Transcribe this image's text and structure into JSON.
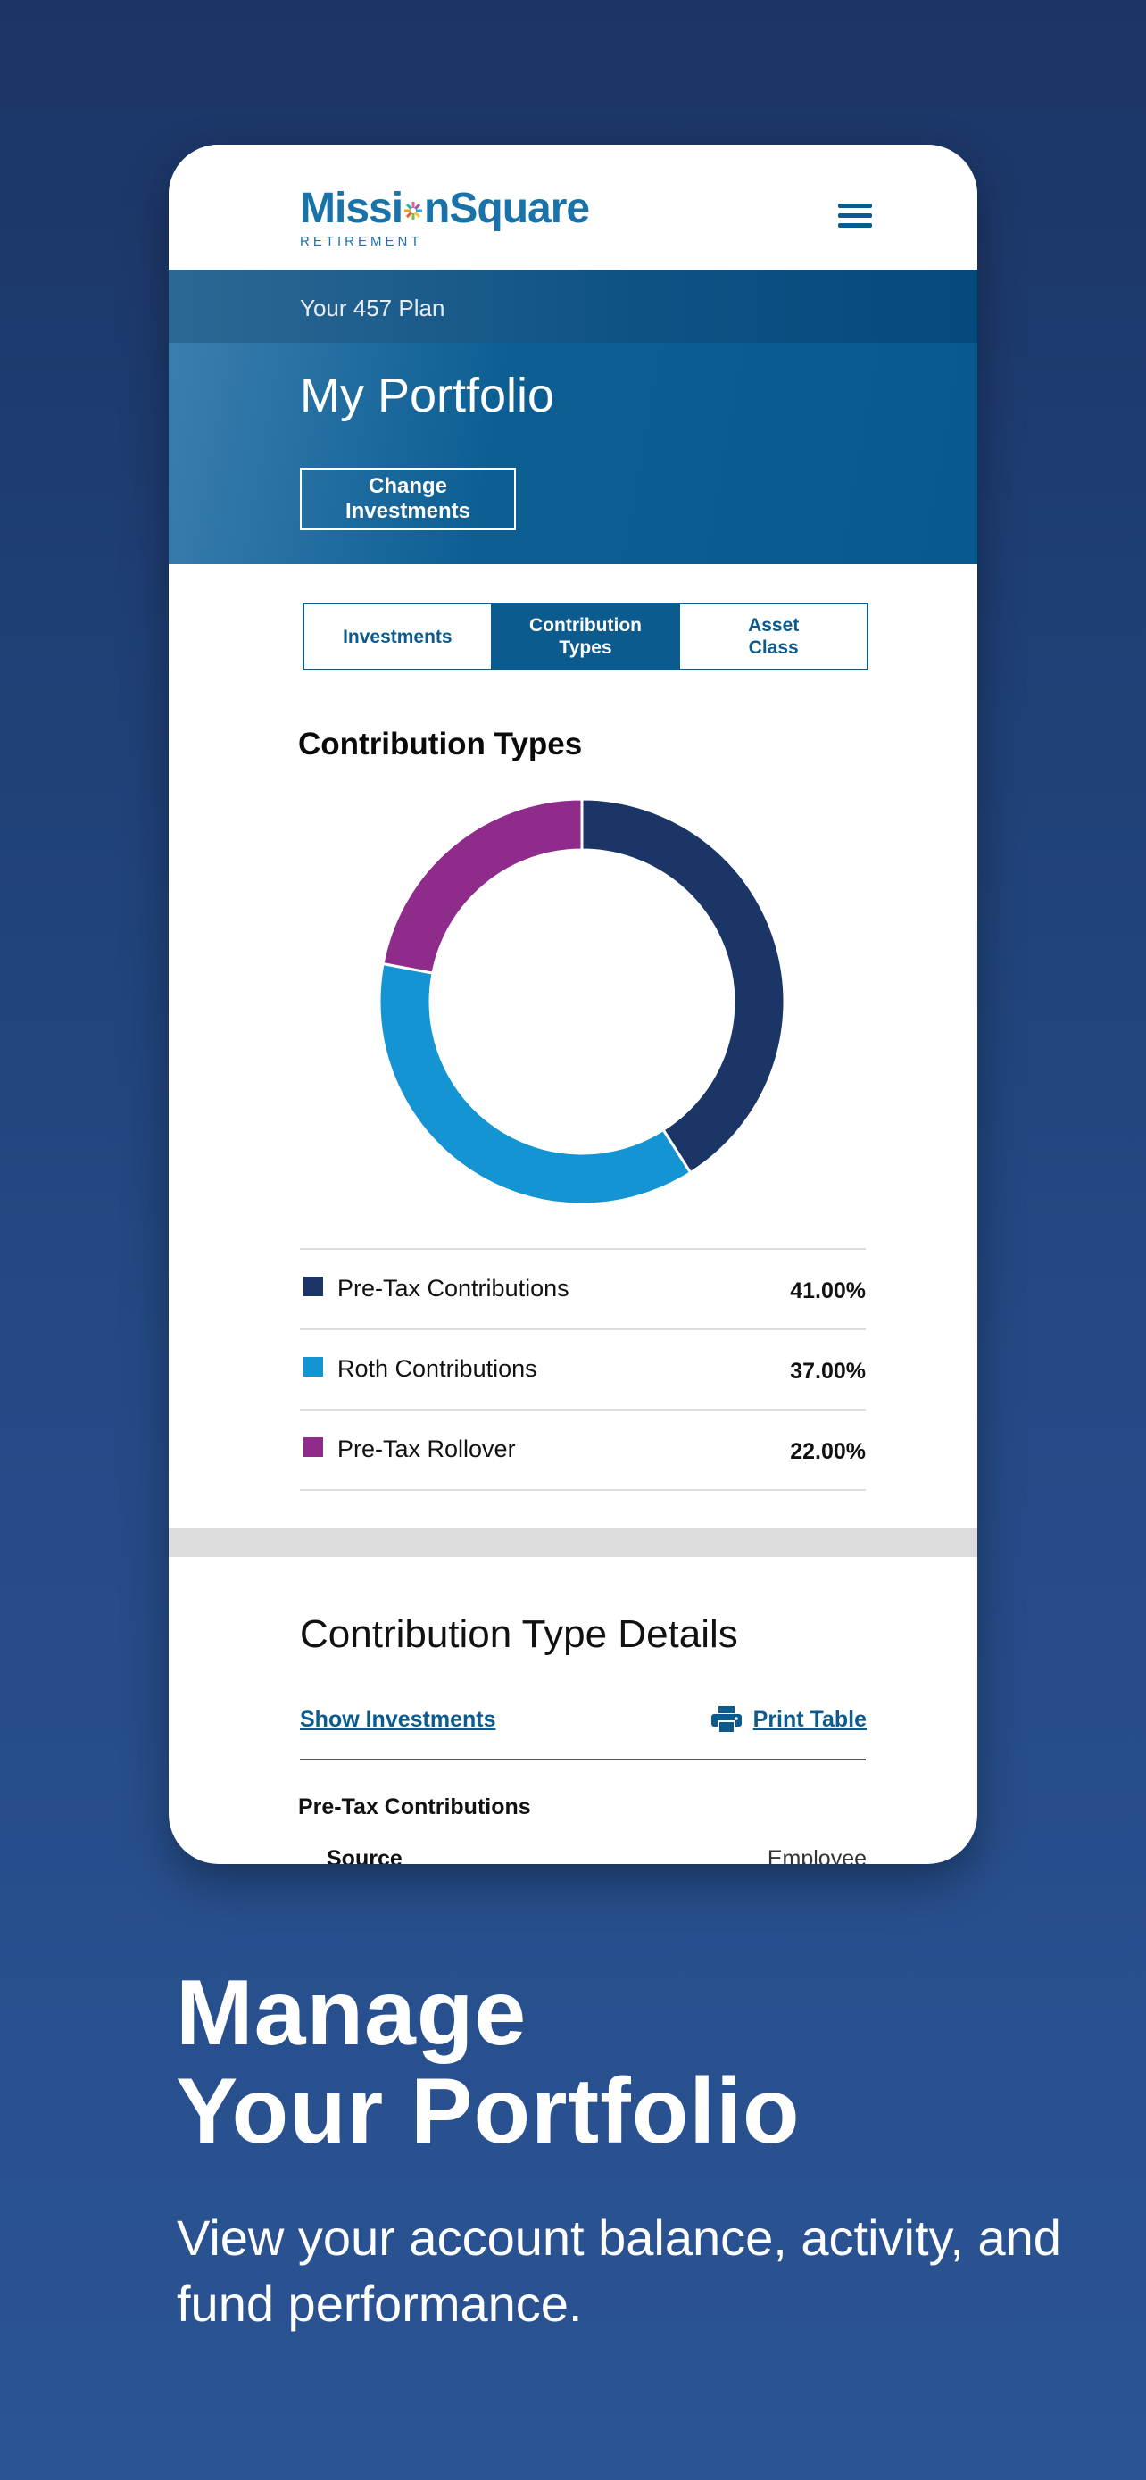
{
  "brand": {
    "name_part1": "Missi",
    "name_part2": "nSquare",
    "tagline": "RETIREMENT"
  },
  "plan_label": "Your 457 Plan",
  "page_title": "My Portfolio",
  "change_investments_label": "Change Investments",
  "tabs": [
    {
      "label": "Investments",
      "active": false
    },
    {
      "label": "Contribution\nTypes",
      "active": true
    },
    {
      "label": "Asset\nClass",
      "active": false
    }
  ],
  "chart_data": {
    "type": "pie",
    "title": "Contribution Types",
    "donut": true,
    "categories": [
      "Pre-Tax Contributions",
      "Roth Contributions",
      "Pre-Tax Rollover"
    ],
    "values": [
      41.0,
      37.0,
      22.0
    ],
    "value_labels": [
      "41.00%",
      "37.00%",
      "22.00%"
    ],
    "colors": [
      "#1b3566",
      "#1594d3",
      "#8e2b8b"
    ]
  },
  "details": {
    "title": "Contribution Type Details",
    "show_investments_label": "Show Investments",
    "print_table_label": "Print Table",
    "section_heading": "Pre-Tax Contributions",
    "column_source": "Source",
    "column_employee": "Employee"
  },
  "marketing": {
    "headline_line1": "Manage",
    "headline_line2": "Your Portfolio",
    "subline": "View your account balance, activity, and fund performance."
  }
}
